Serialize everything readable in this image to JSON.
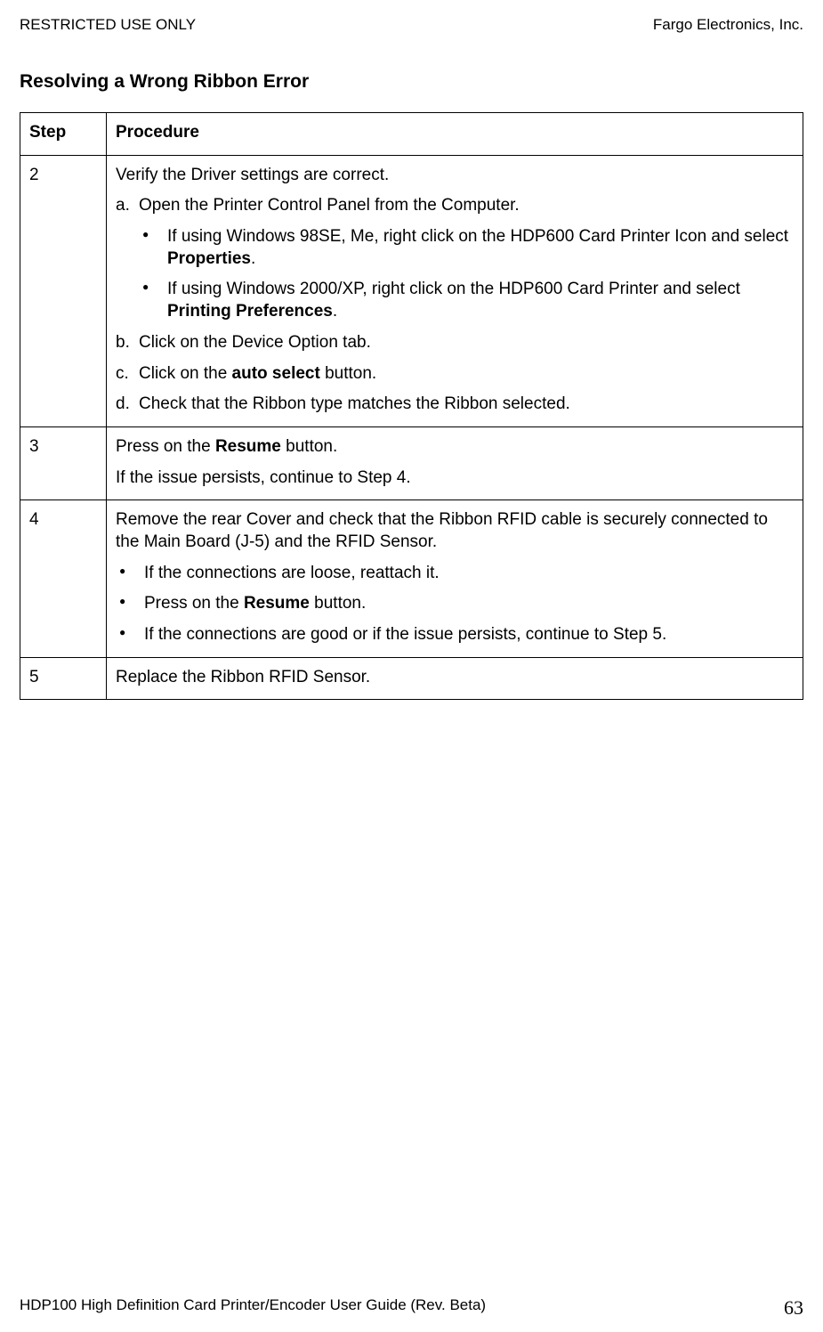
{
  "header": {
    "left": "RESTRICTED USE ONLY",
    "right": "Fargo Electronics, Inc."
  },
  "section_title": "Resolving a Wrong Ribbon Error",
  "table": {
    "columns": {
      "step": "Step",
      "procedure": "Procedure"
    },
    "rows": [
      {
        "step": "2",
        "lines": [
          {
            "type": "plain",
            "text": "Verify the Driver settings are correct."
          },
          {
            "type": "letter",
            "letter": "a.",
            "text": "Open the Printer Control Panel from the Computer."
          },
          {
            "type": "bullet",
            "before": "If using Windows 98SE, Me, right click on the HDP600 Card Printer Icon and select ",
            "bold": "Properties",
            "after": "."
          },
          {
            "type": "bullet",
            "before": "If using Windows 2000/XP, right click on the HDP600 Card Printer and select ",
            "bold": "Printing Preferences",
            "after": "."
          },
          {
            "type": "letter",
            "letter": "b.",
            "text": "Click on the Device Option tab."
          },
          {
            "type": "letter",
            "letter": "c.",
            "before": "Click on the ",
            "bold": "auto select",
            "after": " button."
          },
          {
            "type": "letter",
            "letter": "d.",
            "text": "Check that the Ribbon type matches the Ribbon selected."
          }
        ]
      },
      {
        "step": "3",
        "lines": [
          {
            "type": "plain",
            "before": "Press on the ",
            "bold": "Resume",
            "after": " button."
          },
          {
            "type": "plain",
            "text": "If the issue persists, continue to Step 4."
          }
        ]
      },
      {
        "step": "4",
        "lines": [
          {
            "type": "plain",
            "text": "Remove the rear Cover and check that the Ribbon RFID cable is securely connected to the Main Board (J-5) and the RFID Sensor."
          },
          {
            "type": "bullet-top",
            "text": "If the connections are loose, reattach it."
          },
          {
            "type": "bullet-top",
            "before": "Press on the ",
            "bold": "Resume",
            "after": " button."
          },
          {
            "type": "bullet-top",
            "text": "If the connections are good or if the issue persists, continue to Step 5."
          }
        ]
      },
      {
        "step": "5",
        "lines": [
          {
            "type": "plain",
            "text": "Replace the Ribbon RFID Sensor."
          }
        ]
      }
    ]
  },
  "footer": {
    "title": "HDP100 High Definition Card Printer/Encoder User Guide (Rev. Beta)",
    "page": "63"
  },
  "bullet_glyph": "●"
}
